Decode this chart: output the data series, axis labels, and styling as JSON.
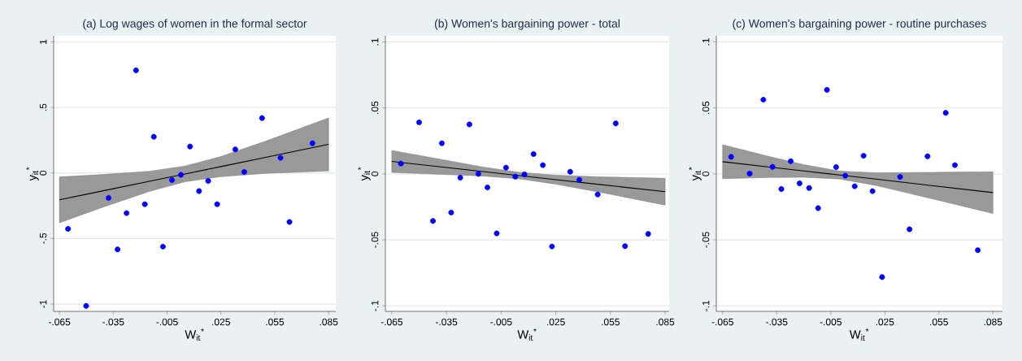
{
  "chart_data": [
    {
      "type": "scatter",
      "title": "(a) Log wages of women in the formal sector",
      "xlabel": "W$_{it}$$^{*}$",
      "ylabel": "y$_{it}$$^{*}$",
      "grid": "y",
      "xlim": [
        -0.0682,
        0.089
      ],
      "ylim": [
        -1.056,
        1.047
      ],
      "xticks": [
        {
          "value": -0.065,
          "label": "-.065"
        },
        {
          "value": -0.035,
          "label": "-.035"
        },
        {
          "value": -0.005,
          "label": "-.005"
        },
        {
          "value": 0.025,
          "label": ".025"
        },
        {
          "value": 0.055,
          "label": ".055"
        },
        {
          "value": 0.085,
          "label": ".085"
        }
      ],
      "yticks": [
        {
          "value": -1,
          "label": "-1"
        },
        {
          "value": -0.5,
          "label": "-.5"
        },
        0,
        {
          "value": 0.5,
          "label": ".5"
        },
        1
      ],
      "series": [
        {
          "type": "line",
          "color": "#000000",
          "x": [
            -0.065,
            -0.04,
            -0.015,
            0.005,
            0.025,
            0.05,
            0.085
          ],
          "values": [
            -0.205,
            -0.134,
            -0.064,
            -0.007,
            0.049,
            0.12,
            0.219
          ],
          "lower": [
            -0.38,
            -0.257,
            -0.141,
            -0.067,
            -0.028,
            -0.003,
            0.016
          ],
          "upper": [
            -0.03,
            -0.011,
            0.013,
            0.053,
            0.126,
            0.243,
            0.42
          ]
        },
        {
          "color": "#0000ff",
          "marker": "circle",
          "x": [
            -0.0602,
            -0.0501,
            -0.0376,
            -0.0326,
            -0.0276,
            -0.0223,
            -0.0174,
            -0.0124,
            -0.0073,
            -0.0023,
            0.0027,
            0.0078,
            0.0128,
            0.0179,
            0.0229,
            0.033,
            0.038,
            0.0479,
            0.0582,
            0.0632,
            0.076
          ],
          "values": [
            -0.426,
            -1.014,
            -0.19,
            -0.583,
            -0.306,
            0.783,
            -0.238,
            0.277,
            -0.562,
            -0.054,
            -0.014,
            0.202,
            -0.138,
            -0.06,
            -0.238,
            0.18,
            0.008,
            0.419,
            0.116,
            -0.374,
            0.227
          ]
        }
      ]
    },
    {
      "type": "scatter",
      "title": "(b) Women's bargaining power - total",
      "xlabel": "W$_{it}$$^{*}$",
      "ylabel": "y$_{it}$$^{*}$",
      "grid": "y",
      "xlim": [
        -0.0685,
        0.0872
      ],
      "ylim": [
        -0.1042,
        0.1046
      ],
      "xticks": [
        {
          "value": -0.065,
          "label": "-.065"
        },
        {
          "value": -0.035,
          "label": "-.035"
        },
        {
          "value": -0.005,
          "label": "-.005"
        },
        {
          "value": 0.025,
          "label": ".025"
        },
        {
          "value": 0.055,
          "label": ".055"
        },
        {
          "value": 0.085,
          "label": ".085"
        }
      ],
      "yticks": [
        {
          "value": -0.1,
          "label": "-.1"
        },
        {
          "value": -0.05,
          "label": "-.05"
        },
        0,
        {
          "value": 0.05,
          "label": ".05"
        },
        {
          "value": 0.1,
          "label": ".1"
        }
      ],
      "series": [
        {
          "type": "line",
          "color": "#000000",
          "x": [
            -0.065,
            -0.04,
            -0.015,
            0.005,
            0.025,
            0.05,
            0.085
          ],
          "values": [
            0.0094,
            0.0056,
            0.0018,
            -0.0013,
            -0.0044,
            -0.0082,
            -0.0135
          ],
          "lower": [
            0.0011,
            -0.0003,
            -0.0016,
            -0.0038,
            -0.0078,
            -0.0141,
            -0.0237
          ],
          "upper": [
            0.0177,
            0.0115,
            0.0052,
            0.0012,
            -0.001,
            -0.0023,
            -0.0033
          ]
        },
        {
          "color": "#0000ff",
          "marker": "circle",
          "x": [
            -0.06,
            -0.05,
            -0.0424,
            -0.0375,
            -0.0324,
            -0.0274,
            -0.0224,
            -0.0175,
            -0.0125,
            -0.0074,
            -0.0023,
            0.0028,
            0.0078,
            0.0128,
            0.0179,
            0.0229,
            0.0329,
            0.0379,
            0.048,
            0.0579,
            0.063,
            0.0757
          ],
          "values": [
            0.0078,
            0.039,
            -0.0357,
            0.0232,
            -0.0293,
            -0.0029,
            0.0375,
            0.0,
            -0.0103,
            -0.0451,
            0.0047,
            -0.0021,
            -0.0004,
            0.015,
            0.0066,
            -0.055,
            0.0016,
            -0.0045,
            -0.0156,
            0.0382,
            -0.0548,
            -0.0455
          ]
        }
      ]
    },
    {
      "type": "scatter",
      "title": "(c) Women's bargaining power - routine purchases",
      "xlabel": "W$_{it}$$^{*}$",
      "ylabel": "y$_{it}$$^{*}$",
      "grid": "y",
      "xlim": [
        -0.0685,
        0.0903
      ],
      "ylim": [
        -0.1042,
        0.1046
      ],
      "xticks": [
        {
          "value": -0.065,
          "label": "-.065"
        },
        {
          "value": -0.035,
          "label": "-.035"
        },
        {
          "value": -0.005,
          "label": "-.005"
        },
        {
          "value": 0.025,
          "label": ".025"
        },
        {
          "value": 0.055,
          "label": ".055"
        },
        {
          "value": 0.085,
          "label": ".085"
        }
      ],
      "yticks": [
        {
          "value": -0.1,
          "label": "-.1"
        },
        {
          "value": -0.05,
          "label": "-.05"
        },
        0,
        {
          "value": 0.05,
          "label": ".05"
        },
        {
          "value": 0.1,
          "label": ".1"
        }
      ],
      "series": [
        {
          "type": "line",
          "color": "#000000",
          "x": [
            -0.065,
            -0.04,
            -0.02,
            0.0,
            0.02,
            0.05,
            0.085
          ],
          "values": [
            0.0092,
            0.0053,
            0.0022,
            -0.0009,
            -0.004,
            -0.0087,
            -0.0142
          ],
          "lower": [
            -0.0037,
            -0.0028,
            -0.0026,
            -0.0039,
            -0.0088,
            -0.0185,
            -0.03
          ],
          "upper": [
            0.0221,
            0.0134,
            0.007,
            0.0021,
            0.0008,
            0.0011,
            0.0016
          ]
        },
        {
          "color": "#0000ff",
          "marker": "circle",
          "x": [
            -0.0603,
            -0.05,
            -0.0424,
            -0.0373,
            -0.0324,
            -0.0272,
            -0.0223,
            -0.017,
            -0.012,
            -0.0071,
            -0.002,
            0.0031,
            0.0083,
            0.0132,
            0.0182,
            0.0235,
            0.0335,
            0.0387,
            0.0487,
            0.0588,
            0.0639,
            0.0766
          ],
          "values": [
            0.0129,
            0.0002,
            0.0562,
            0.0053,
            -0.0115,
            0.0096,
            -0.0072,
            -0.0107,
            -0.026,
            0.0636,
            0.0051,
            -0.0014,
            -0.0094,
            0.0137,
            -0.0131,
            -0.0782,
            -0.0023,
            -0.042,
            0.0133,
            0.0462,
            0.0066,
            -0.0578
          ]
        }
      ]
    }
  ]
}
